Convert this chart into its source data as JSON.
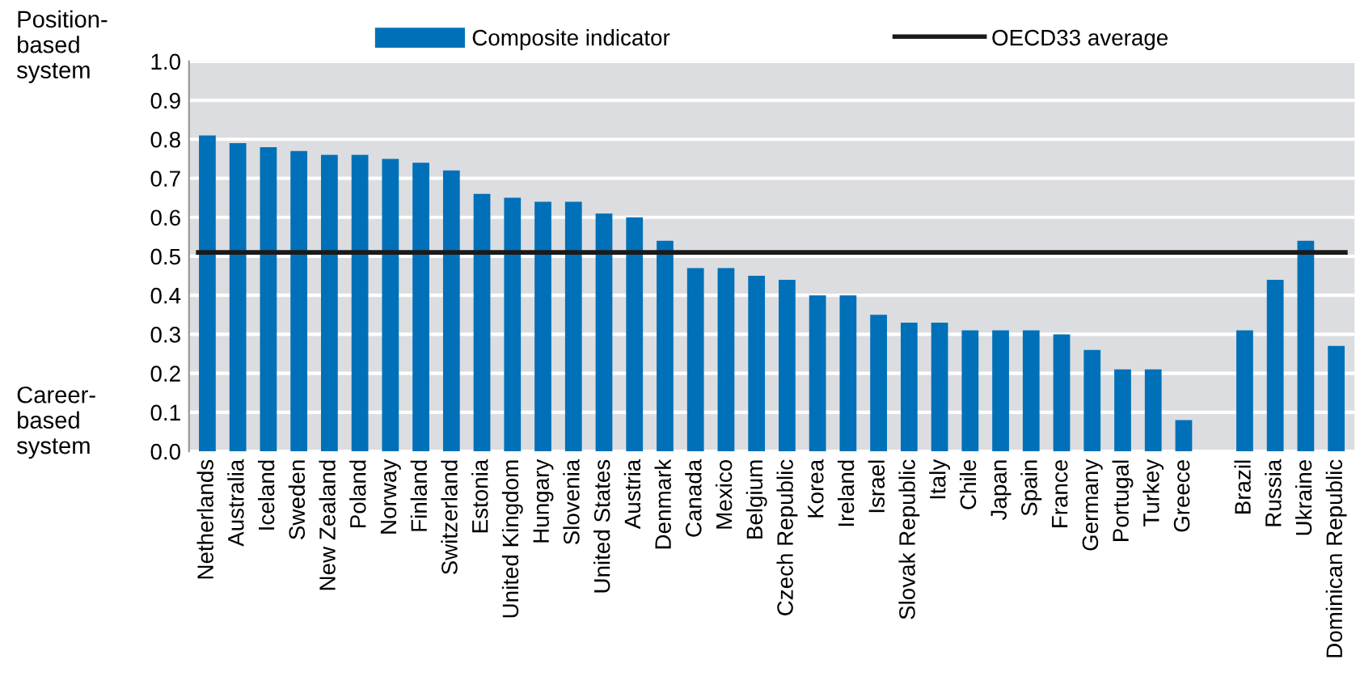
{
  "chart_data": {
    "type": "bar",
    "categories": [
      "Netherlands",
      "Australia",
      "Iceland",
      "Sweden",
      "New Zealand",
      "Poland",
      "Norway",
      "Finland",
      "Switzerland",
      "Estonia",
      "United Kingdom",
      "Hungary",
      "Slovenia",
      "United States",
      "Austria",
      "Denmark",
      "Canada",
      "Mexico",
      "Belgium",
      "Czech Republic",
      "Korea",
      "Ireland",
      "Israel",
      "Slovak Republic",
      "Italy",
      "Chile",
      "Japan",
      "Spain",
      "France",
      "Germany",
      "Portugal",
      "Turkey",
      "Greece",
      null,
      "Brazil",
      "Russia",
      "Ukraine",
      "Dominican Republic"
    ],
    "series": [
      {
        "name": "Composite indicator",
        "color": "#0070b8",
        "values": [
          0.81,
          0.79,
          0.78,
          0.77,
          0.76,
          0.76,
          0.75,
          0.74,
          0.72,
          0.66,
          0.65,
          0.64,
          0.64,
          0.61,
          0.6,
          0.54,
          0.47,
          0.47,
          0.45,
          0.44,
          0.4,
          0.4,
          0.35,
          0.33,
          0.33,
          0.31,
          0.31,
          0.31,
          0.3,
          0.26,
          0.21,
          0.21,
          0.08,
          null,
          0.31,
          0.44,
          0.54,
          0.27
        ]
      }
    ],
    "ref_lines": [
      {
        "axis": "y",
        "value": 0.51,
        "label": "OECD33 average",
        "color": "#1a1a1a",
        "line_style": "solid"
      }
    ],
    "ylim": [
      0,
      1.0
    ],
    "yticks": [
      {
        "value": 0,
        "label": "0.0"
      },
      0.1,
      0.2,
      0.3,
      0.4,
      0.5,
      0.6,
      0.7,
      0.8,
      0.9,
      {
        "value": 1.0,
        "label": "1.0"
      }
    ],
    "grid": "y",
    "legend": "top",
    "annotations": [
      "Position-\nbased\nsystem",
      "Career-\nbased\nsystem"
    ]
  }
}
